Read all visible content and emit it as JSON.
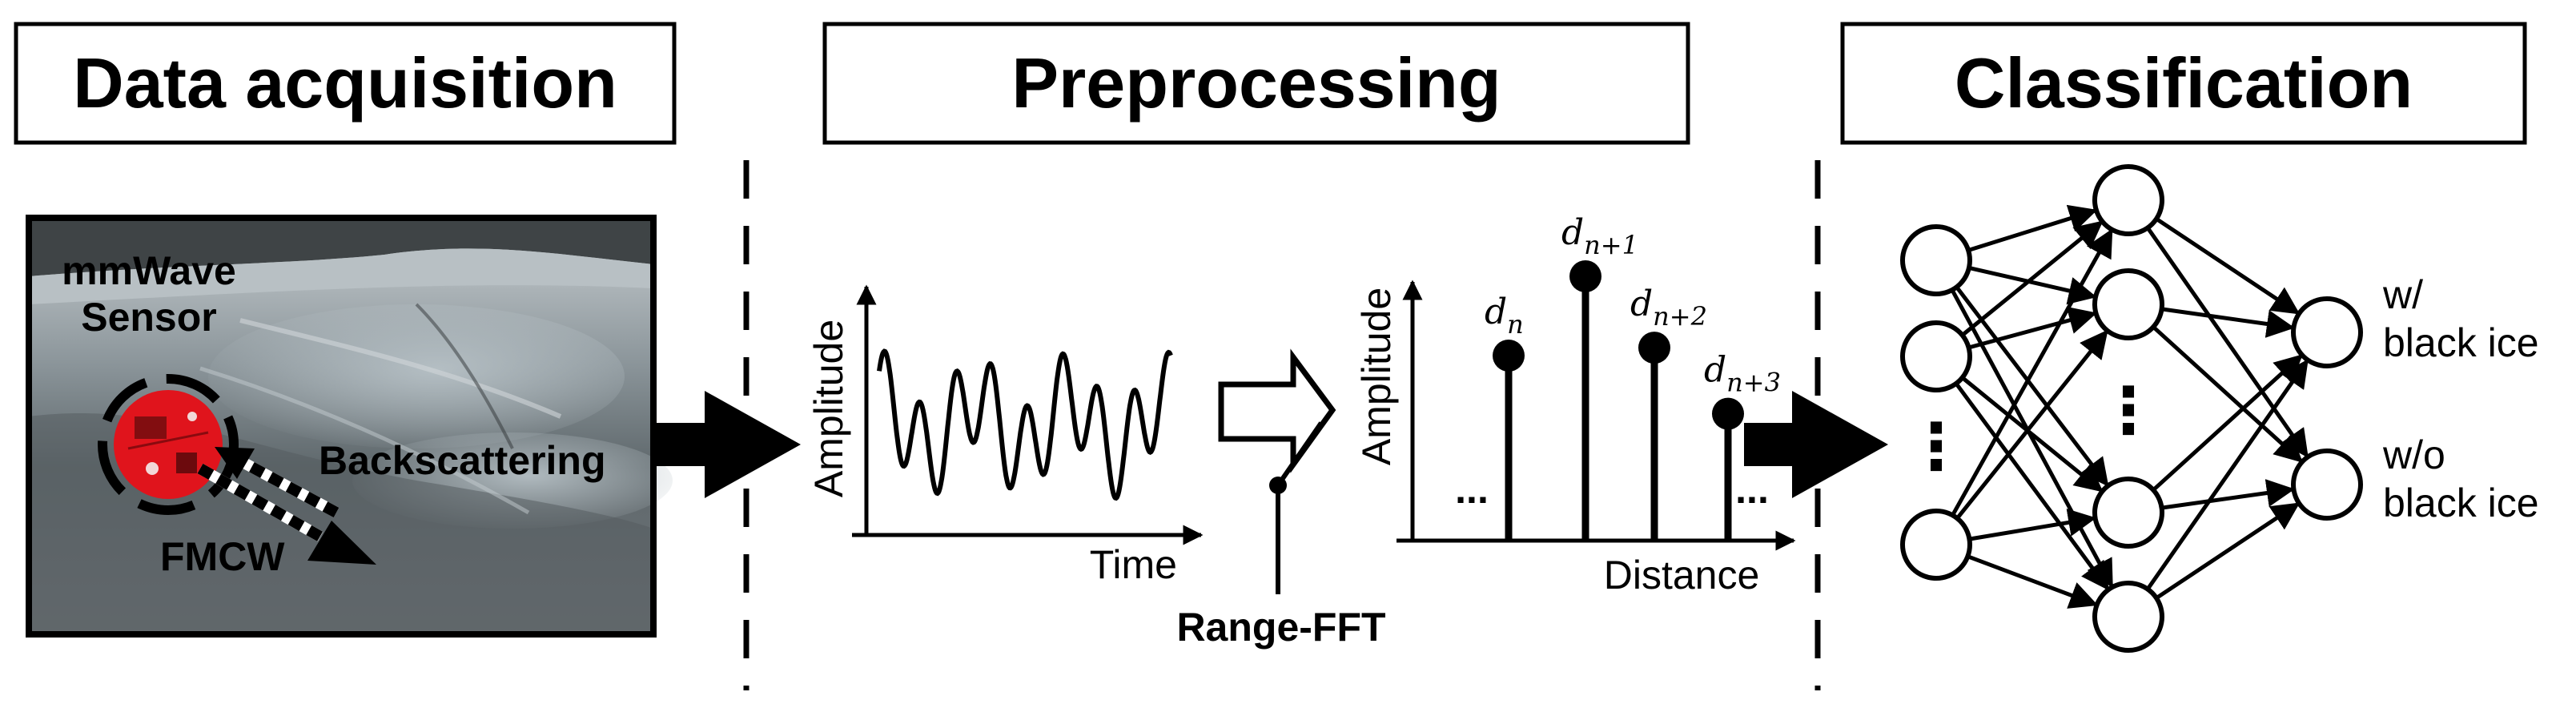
{
  "stages": {
    "acquisition": {
      "title": "Data acquisition"
    },
    "preprocessing": {
      "title": "Preprocessing"
    },
    "classification": {
      "title": "Classification"
    }
  },
  "photo": {
    "sensor_label_line1": "mmWave",
    "sensor_label_line2": "Sensor",
    "backscatter_label": "Backscattering",
    "fmcw_label": "FMCW"
  },
  "time_signal": {
    "ylabel": "Amplitude",
    "xlabel": "Time"
  },
  "fft": {
    "label": "Range-FFT"
  },
  "range_profile": {
    "ylabel": "Amplitude",
    "xlabel": "Distance",
    "ellipsis_left": "...",
    "ellipsis_right": "...",
    "peaks": [
      {
        "base": "d",
        "sub": "n",
        "rel_height": 0.7
      },
      {
        "base": "d",
        "sub": "n+1",
        "rel_height": 1.0
      },
      {
        "base": "d",
        "sub": "n+2",
        "rel_height": 0.73
      },
      {
        "base": "d",
        "sub": "n+3",
        "rel_height": 0.48
      }
    ]
  },
  "network": {
    "input_nodes_visible": 3,
    "hidden_nodes_visible": 4,
    "output_labels": [
      {
        "line1": "w/",
        "line2": "black ice"
      },
      {
        "line1": "w/o",
        "line2": "black ice"
      }
    ],
    "ellipsis": "⋮"
  },
  "colors": {
    "stroke": "#000000",
    "sensor_red": "#e0141c",
    "road_dark": "#4f5557",
    "road_light": "#a7b0b5"
  }
}
